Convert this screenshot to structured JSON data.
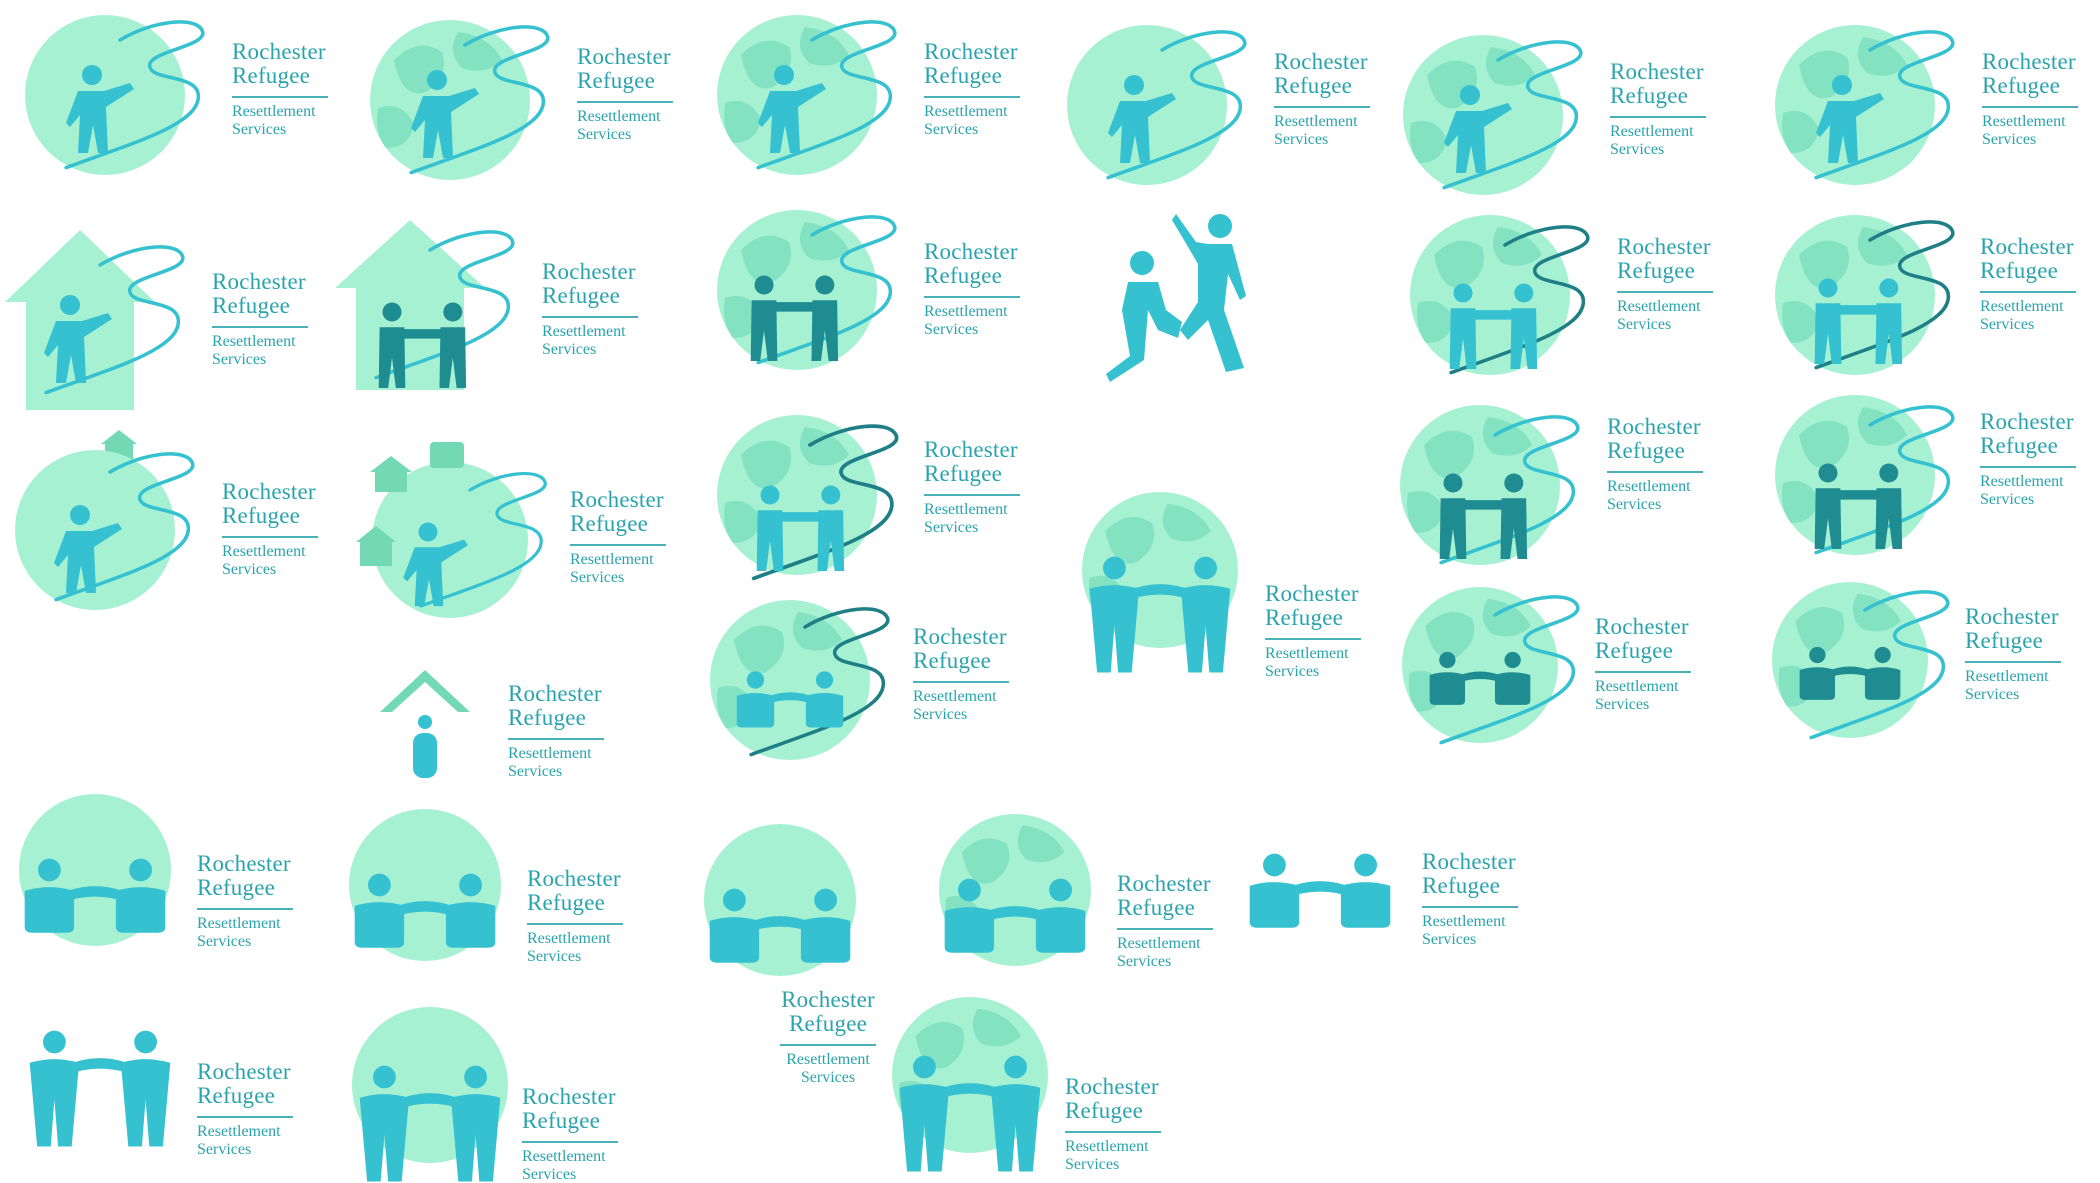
{
  "wordmark": {
    "line1": "Rochester",
    "line2": "Refugee",
    "line3": "Resettlement",
    "line4": "Services"
  },
  "colors": {
    "globe": "#a6f1d2",
    "land": "#82e2c1",
    "figure": "#35c1cf",
    "figure_dark": "#1e8c91",
    "river": "#35c1cf",
    "river_dark": "#1f7f86",
    "text": "#2aa3ad",
    "house": "#a6f1d2",
    "icon_house": "#72d9b4"
  },
  "icons": [
    "globe-icon",
    "house-icon",
    "person-icon",
    "river-icon",
    "handshake-icon",
    "suitcase-icon",
    "roof-icon"
  ]
}
